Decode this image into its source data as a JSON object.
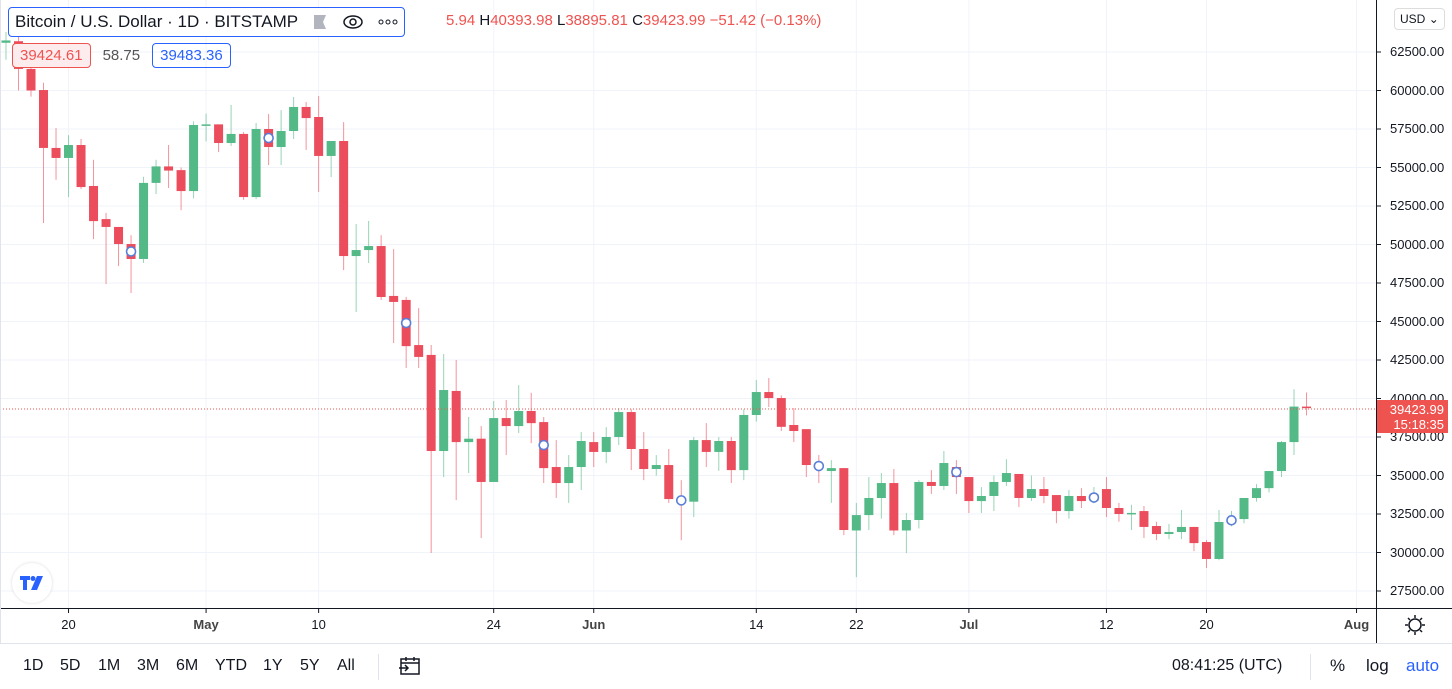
{
  "legend": {
    "symbol": "Bitcoin / U.S. Dollar · 1D · BITSTAMP",
    "icons": [
      "flag-icon",
      "eye-icon",
      "more-icon"
    ]
  },
  "ohlc": {
    "open_visible": "5.94",
    "h_label": "H",
    "high": "40393.98",
    "l_label": "L",
    "low": "38895.81",
    "c_label": "C",
    "close": "39423.99",
    "change": "−51.42 (−0.13%)"
  },
  "quote": {
    "bid": "39424.61",
    "spread": "58.75",
    "ask": "39483.36"
  },
  "currency": "USD",
  "last_price": {
    "price": "39423.99",
    "countdown": "15:18:35"
  },
  "colors": {
    "up": "#53b987",
    "down": "#eb4d5c",
    "accent": "#2962ff",
    "last_price": "#ef5350"
  },
  "chart_data": {
    "type": "candlestick",
    "interval": "1D",
    "start_date": "2021-04-15",
    "ylim": [
      26000,
      65500
    ],
    "y_ticks": [
      "27500.00",
      "30000.00",
      "32500.00",
      "35000.00",
      "37500.00",
      "40000.00",
      "42500.00",
      "45000.00",
      "47500.00",
      "50000.00",
      "52500.00",
      "55000.00",
      "57500.00",
      "60000.00",
      "62500.00"
    ],
    "x_ticks": [
      {
        "label": "20",
        "date": "2021-04-20",
        "month": false
      },
      {
        "label": "May",
        "date": "2021-05-01",
        "month": true
      },
      {
        "label": "10",
        "date": "2021-05-10",
        "month": false
      },
      {
        "label": "24",
        "date": "2021-05-24",
        "month": false
      },
      {
        "label": "Jun",
        "date": "2021-06-01",
        "month": true
      },
      {
        "label": "14",
        "date": "2021-06-14",
        "month": false
      },
      {
        "label": "22",
        "date": "2021-06-22",
        "month": false
      },
      {
        "label": "Jul",
        "date": "2021-07-01",
        "month": true
      },
      {
        "label": "12",
        "date": "2021-07-12",
        "month": false
      },
      {
        "label": "20",
        "date": "2021-07-20",
        "month": false
      },
      {
        "label": "Aug",
        "date": "2021-08-01",
        "month": true
      }
    ],
    "event_marker_indices": [
      10,
      21,
      32,
      43,
      54,
      65,
      76,
      87,
      98
    ],
    "ohlc": [
      [
        63100,
        63800,
        62000,
        63250
      ],
      [
        63200,
        63500,
        60000,
        61400
      ],
      [
        61400,
        61800,
        59600,
        60000
      ],
      [
        60030,
        60500,
        51400,
        56270
      ],
      [
        56270,
        57560,
        54200,
        55620
      ],
      [
        55620,
        57100,
        53080,
        56460
      ],
      [
        56460,
        56850,
        53600,
        53730
      ],
      [
        53800,
        55500,
        50350,
        51520
      ],
      [
        51650,
        52050,
        47430,
        51140
      ],
      [
        51140,
        51140,
        48600,
        50030
      ],
      [
        50030,
        50600,
        46850,
        49060
      ],
      [
        49060,
        54400,
        48800,
        54000
      ],
      [
        54000,
        55500,
        53270,
        55070
      ],
      [
        55070,
        56460,
        53670,
        54800
      ],
      [
        54830,
        55000,
        52230,
        53470
      ],
      [
        53470,
        58000,
        53000,
        57760
      ],
      [
        57760,
        58500,
        56700,
        57800
      ],
      [
        57800,
        57800,
        56000,
        56590
      ],
      [
        56590,
        59060,
        56400,
        57180
      ],
      [
        57180,
        57300,
        52900,
        53080
      ],
      [
        53080,
        57890,
        52950,
        57500
      ],
      [
        57500,
        58470,
        55160,
        56330
      ],
      [
        56330,
        58730,
        55160,
        57370
      ],
      [
        57370,
        59580,
        56850,
        58930
      ],
      [
        58930,
        59250,
        56140,
        58210
      ],
      [
        58280,
        59640,
        53410,
        55750
      ],
      [
        55750,
        56720,
        54380,
        56720
      ],
      [
        56720,
        57950,
        48340,
        49250
      ],
      [
        49250,
        51330,
        45620,
        49640
      ],
      [
        49640,
        51530,
        48800,
        49900
      ],
      [
        49900,
        50600,
        46400,
        46590
      ],
      [
        46660,
        49700,
        43600,
        46270
      ],
      [
        46400,
        46600,
        41980,
        43400
      ],
      [
        43470,
        45870,
        41980,
        42700
      ],
      [
        42830,
        43470,
        29970,
        36590
      ],
      [
        36590,
        42890,
        34900,
        40550
      ],
      [
        40490,
        42500,
        33400,
        37170
      ],
      [
        37170,
        38800,
        35160,
        37390
      ],
      [
        37390,
        38210,
        30940,
        34580
      ],
      [
        34580,
        39840,
        34580,
        38730
      ],
      [
        38730,
        39900,
        36330,
        38210
      ],
      [
        38210,
        40870,
        37760,
        39190
      ],
      [
        39190,
        40370,
        37100,
        38400
      ],
      [
        38470,
        38800,
        34510,
        35480
      ],
      [
        35550,
        37300,
        33540,
        34510
      ],
      [
        34510,
        36330,
        33220,
        35550
      ],
      [
        35550,
        37820,
        34060,
        37240
      ],
      [
        37170,
        37820,
        35550,
        36530
      ],
      [
        36530,
        38140,
        35800,
        37500
      ],
      [
        37500,
        39380,
        36980,
        39120
      ],
      [
        39120,
        39300,
        35350,
        36720
      ],
      [
        36720,
        37820,
        34700,
        35420
      ],
      [
        35420,
        36330,
        34990,
        35680
      ],
      [
        35680,
        36720,
        33220,
        33470
      ],
      [
        33470,
        34700,
        30800,
        33300
      ],
      [
        33300,
        37500,
        32300,
        37300
      ],
      [
        37300,
        38400,
        35550,
        36530
      ],
      [
        36530,
        37500,
        35300,
        37240
      ],
      [
        37240,
        37500,
        34510,
        35350
      ],
      [
        35350,
        39300,
        34700,
        38930
      ],
      [
        38930,
        41200,
        38500,
        40420
      ],
      [
        40420,
        41330,
        39450,
        40030
      ],
      [
        40030,
        40200,
        37890,
        38160
      ],
      [
        38280,
        39380,
        37170,
        37890
      ],
      [
        38010,
        38010,
        34900,
        35680
      ],
      [
        35680,
        36330,
        34510,
        35550
      ],
      [
        35290,
        36000,
        33220,
        35480
      ],
      [
        35480,
        35480,
        31130,
        31460
      ],
      [
        31430,
        33220,
        28400,
        32430
      ],
      [
        32430,
        34900,
        31460,
        33540
      ],
      [
        33540,
        35160,
        32200,
        34510
      ],
      [
        34510,
        35420,
        31130,
        31430
      ],
      [
        31430,
        32560,
        29960,
        32110
      ],
      [
        32110,
        34700,
        31560,
        34580
      ],
      [
        34580,
        35350,
        33800,
        34320
      ],
      [
        34320,
        36590,
        34060,
        35810
      ],
      [
        35550,
        36000,
        33800,
        34900
      ],
      [
        34900,
        34900,
        32560,
        33340
      ],
      [
        33340,
        34250,
        32560,
        33670
      ],
      [
        33670,
        35000,
        32690,
        34580
      ],
      [
        34580,
        36060,
        34320,
        35160
      ],
      [
        35100,
        35100,
        32950,
        33540
      ],
      [
        33540,
        35000,
        33350,
        34120
      ],
      [
        34120,
        34900,
        33200,
        33670
      ],
      [
        33730,
        33730,
        31900,
        32690
      ],
      [
        32690,
        34060,
        32200,
        33670
      ],
      [
        33670,
        34180,
        32890,
        33340
      ],
      [
        33340,
        34250,
        33200,
        33800
      ],
      [
        34120,
        34900,
        32300,
        32890
      ],
      [
        32890,
        33220,
        32000,
        32500
      ],
      [
        32500,
        33100,
        31460,
        32570
      ],
      [
        32690,
        33020,
        30940,
        31660
      ],
      [
        31720,
        32000,
        30800,
        31200
      ],
      [
        31200,
        31850,
        30870,
        31330
      ],
      [
        31330,
        32760,
        30870,
        31660
      ],
      [
        31660,
        31660,
        30090,
        30610
      ],
      [
        30680,
        30800,
        28990,
        29580
      ],
      [
        29580,
        32760,
        29500,
        31980
      ],
      [
        31980,
        32700,
        31700,
        32200
      ],
      [
        32170,
        33540,
        31900,
        33540
      ],
      [
        33540,
        34440,
        33300,
        34180
      ],
      [
        34180,
        35290,
        33900,
        35290
      ],
      [
        35290,
        37240,
        34900,
        37170
      ],
      [
        37170,
        40600,
        36330,
        39475
      ],
      [
        39475,
        40394,
        38896,
        39424
      ]
    ]
  },
  "toolbar": {
    "ranges": [
      "1D",
      "5D",
      "1M",
      "3M",
      "6M",
      "YTD",
      "1Y",
      "5Y",
      "All"
    ],
    "clock": "08:41:25 (UTC)",
    "percent": "%",
    "log": "log",
    "auto": "auto"
  }
}
